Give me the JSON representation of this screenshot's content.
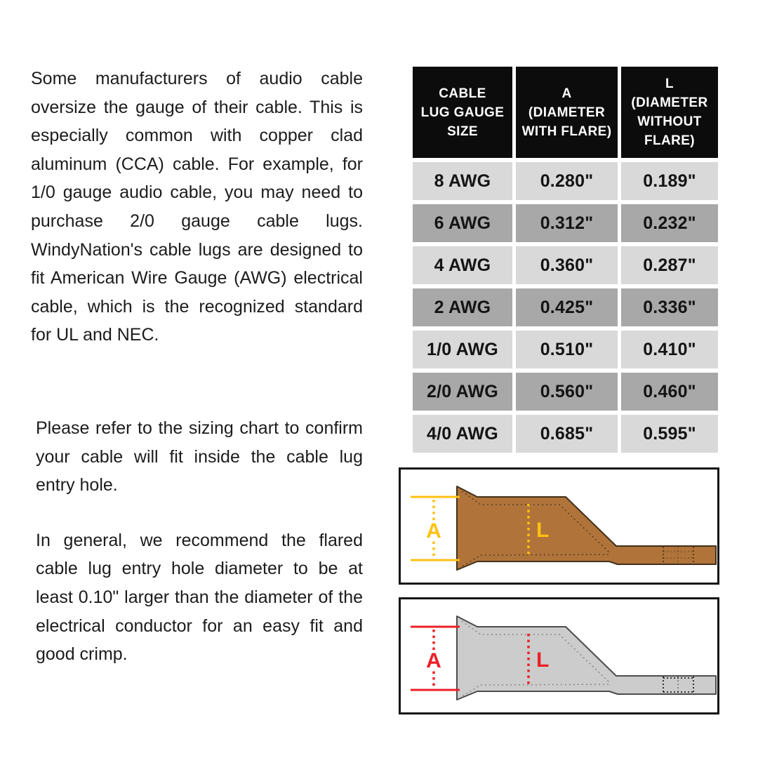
{
  "intro": {
    "text": "Some manufacturers of audio cable oversize the gauge of their cable. This is especially common with copper clad aluminum (CCA) cable. For example, for 1/0 gauge audio cable, you may need to purchase 2/0 gauge cable lugs. WindyNation's cable lugs are designed to fit American Wire Gauge (AWG) electrical cable, which is the recognized standard for UL and NEC."
  },
  "note": {
    "text": "Please refer to the sizing chart to confirm your cable will fit inside the cable lug entry hole."
  },
  "recommendation": {
    "text": "In general, we recommend the flared cable lug entry hole diameter to be at least 0.10\" larger than the diameter of the electrical conductor for an easy fit and good crimp."
  },
  "sizing_table": {
    "header": [
      {
        "lines": [
          "CABLE",
          "LUG GAUGE",
          "SIZE"
        ]
      },
      {
        "lines": [
          "A",
          "(DIAMETER",
          "WITH FLARE)"
        ]
      },
      {
        "lines": [
          "L",
          "(DIAMETER",
          "WITHOUT",
          "FLARE)"
        ]
      }
    ],
    "rows": [
      {
        "size": "8 AWG",
        "a": "0.280\"",
        "l": "0.189\""
      },
      {
        "size": "6 AWG",
        "a": "0.312\"",
        "l": "0.232\""
      },
      {
        "size": "4 AWG",
        "a": "0.360\"",
        "l": "0.287\""
      },
      {
        "size": "2 AWG",
        "a": "0.425\"",
        "l": "0.336\""
      },
      {
        "size": "1/0 AWG",
        "a": "0.510\"",
        "l": "0.410\""
      },
      {
        "size": "2/0 AWG",
        "a": "0.560\"",
        "l": "0.460\""
      },
      {
        "size": "4/0 AWG",
        "a": "0.685\"",
        "l": "0.595\""
      }
    ],
    "colors": {
      "header_bg": "#0c0c0c",
      "header_text": "#ffffff",
      "row_light": "#d9d9d9",
      "row_dark": "#a8a8a8",
      "cell_text": "#141414"
    }
  },
  "diagrams": [
    {
      "name": "copper lug (bare)",
      "dim_a_label": "A",
      "dim_l_label": "L",
      "accent": "#fdc112",
      "body_fill": "#b0743a",
      "body_stroke": "#42301b",
      "detail_stroke": "#5d3d1d",
      "crimp_stroke": "#4a2f12"
    },
    {
      "name": "tinned lug (gray)",
      "dim_a_label": "A",
      "dim_l_label": "L",
      "accent": "#ec2027",
      "body_fill": "#cccccc",
      "body_stroke": "#4d4d4d",
      "detail_stroke": "#8a8a8a",
      "crimp_stroke": "#222222"
    }
  ]
}
